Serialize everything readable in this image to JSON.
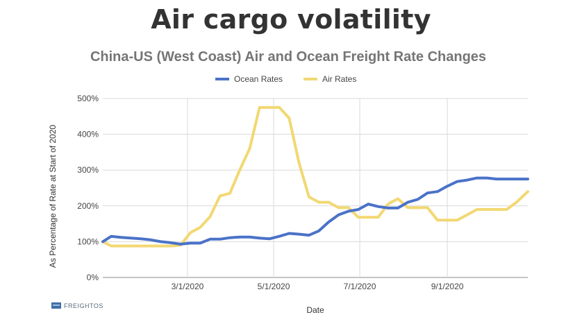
{
  "page": {
    "headline": "Air cargo volatility",
    "brand": "FREIGHTOS"
  },
  "colors": {
    "ocean": "#4a72c8",
    "air": "#f2d873",
    "grid": "#d9d9d9",
    "axis": "#888888"
  },
  "chart_data": {
    "type": "line",
    "title": "China-US (West Coast) Air and Ocean Freight Rate Changes",
    "xlabel": "Date",
    "ylabel": "As Percentage of Rate at Start of 2020",
    "xlim": [
      "2020-01-01",
      "2020-10-28"
    ],
    "ylim": [
      0,
      500
    ],
    "yticks": [
      0,
      100,
      200,
      300,
      400,
      500
    ],
    "ytick_labels": [
      "0%",
      "100%",
      "200%",
      "300%",
      "400%",
      "500%"
    ],
    "xticks": [
      "2020-03-01",
      "2020-05-01",
      "2020-07-01",
      "2020-09-01"
    ],
    "xtick_labels": [
      "3/1/2020",
      "5/1/2020",
      "7/1/2020",
      "9/1/2020"
    ],
    "grid": true,
    "legend_position": "top-center",
    "series": [
      {
        "name": "Ocean Rates",
        "color": "#4a72c8",
        "x": [
          "2020-01-01",
          "2020-01-07",
          "2020-01-14",
          "2020-01-21",
          "2020-01-28",
          "2020-02-04",
          "2020-02-11",
          "2020-02-18",
          "2020-02-25",
          "2020-03-03",
          "2020-03-10",
          "2020-03-17",
          "2020-03-24",
          "2020-03-31",
          "2020-04-07",
          "2020-04-14",
          "2020-04-21",
          "2020-04-28",
          "2020-05-05",
          "2020-05-12",
          "2020-05-19",
          "2020-05-26",
          "2020-06-02",
          "2020-06-09",
          "2020-06-16",
          "2020-06-23",
          "2020-06-30",
          "2020-07-07",
          "2020-07-14",
          "2020-07-21",
          "2020-07-28",
          "2020-08-04",
          "2020-08-11",
          "2020-08-18",
          "2020-08-25",
          "2020-09-01",
          "2020-09-08",
          "2020-09-15",
          "2020-09-22",
          "2020-09-29",
          "2020-10-06",
          "2020-10-13",
          "2020-10-20",
          "2020-10-28"
        ],
        "y": [
          100,
          115,
          112,
          110,
          108,
          105,
          100,
          97,
          93,
          96,
          96,
          107,
          107,
          111,
          113,
          113,
          110,
          108,
          115,
          123,
          121,
          118,
          130,
          155,
          175,
          185,
          190,
          205,
          198,
          194,
          194,
          210,
          218,
          236,
          240,
          255,
          268,
          272,
          278,
          278,
          275,
          275,
          275,
          275
        ]
      },
      {
        "name": "Air Rates",
        "color": "#f2d873",
        "x": [
          "2020-01-01",
          "2020-01-07",
          "2020-01-14",
          "2020-01-21",
          "2020-01-28",
          "2020-02-04",
          "2020-02-11",
          "2020-02-18",
          "2020-02-25",
          "2020-03-03",
          "2020-03-10",
          "2020-03-17",
          "2020-03-24",
          "2020-03-31",
          "2020-04-07",
          "2020-04-14",
          "2020-04-21",
          "2020-04-28",
          "2020-05-05",
          "2020-05-12",
          "2020-05-19",
          "2020-05-26",
          "2020-06-02",
          "2020-06-09",
          "2020-06-16",
          "2020-06-23",
          "2020-06-30",
          "2020-07-07",
          "2020-07-14",
          "2020-07-21",
          "2020-07-28",
          "2020-08-04",
          "2020-08-11",
          "2020-08-18",
          "2020-08-25",
          "2020-09-01",
          "2020-09-08",
          "2020-09-15",
          "2020-09-22",
          "2020-09-29",
          "2020-10-06",
          "2020-10-13",
          "2020-10-20",
          "2020-10-28"
        ],
        "y": [
          100,
          88,
          88,
          88,
          88,
          88,
          88,
          88,
          90,
          125,
          140,
          170,
          228,
          235,
          300,
          360,
          475,
          475,
          475,
          445,
          320,
          225,
          210,
          210,
          195,
          195,
          168,
          168,
          168,
          205,
          220,
          195,
          195,
          195,
          160,
          160,
          160,
          175,
          190,
          190,
          190,
          190,
          210,
          240
        ]
      }
    ]
  }
}
